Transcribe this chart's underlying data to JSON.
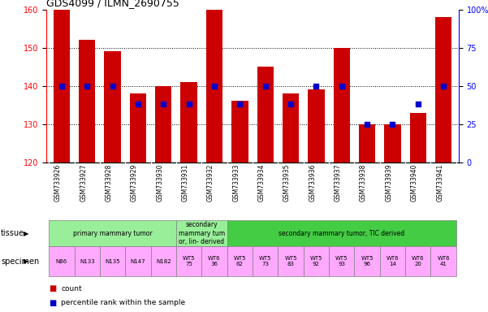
{
  "title": "GDS4099 / ILMN_2690755",
  "samples": [
    "GSM733926",
    "GSM733927",
    "GSM733928",
    "GSM733929",
    "GSM733930",
    "GSM733931",
    "GSM733932",
    "GSM733933",
    "GSM733934",
    "GSM733935",
    "GSM733936",
    "GSM733937",
    "GSM733938",
    "GSM733939",
    "GSM733940",
    "GSM733941"
  ],
  "count_values": [
    160,
    152,
    149,
    138,
    140,
    141,
    160,
    136,
    145,
    138,
    139,
    150,
    130,
    130,
    133,
    158
  ],
  "percentile_values": [
    50,
    50,
    50,
    38,
    38,
    38,
    50,
    38,
    50,
    38,
    50,
    50,
    25,
    25,
    38,
    50
  ],
  "ylim_left": [
    120,
    160
  ],
  "ylim_right": [
    0,
    100
  ],
  "yticks_left": [
    120,
    130,
    140,
    150,
    160
  ],
  "yticks_right": [
    0,
    25,
    50,
    75,
    100
  ],
  "bar_color": "#cc0000",
  "dot_color": "#0000cc",
  "tissue_groups": [
    {
      "label": "primary mammary tumor",
      "start": 0,
      "end": 4,
      "color": "#99ee99"
    },
    {
      "label": "secondary\nmammary tum\nor, lin- derived",
      "start": 5,
      "end": 6,
      "color": "#99ee99"
    },
    {
      "label": "secondary mammary tumor, TIC derived",
      "start": 7,
      "end": 15,
      "color": "#44cc44"
    }
  ],
  "specimen_items": [
    "N86",
    "N133",
    "N135",
    "N147",
    "N182",
    "WT5\n75",
    "WT6\n36",
    "WT5\n62",
    "WT5\n73",
    "WT5\n83",
    "WT5\n92",
    "WT5\n93",
    "WT5\n96",
    "WT6\n14",
    "WT6\n20",
    "WT6\n41"
  ],
  "specimen_color": "#ffaaff",
  "xtick_bg": "#d0d0d0",
  "legend_count_color": "#cc0000",
  "legend_dot_color": "#0000cc",
  "row_label_tissue": "tissue",
  "row_label_specimen": "specimen"
}
